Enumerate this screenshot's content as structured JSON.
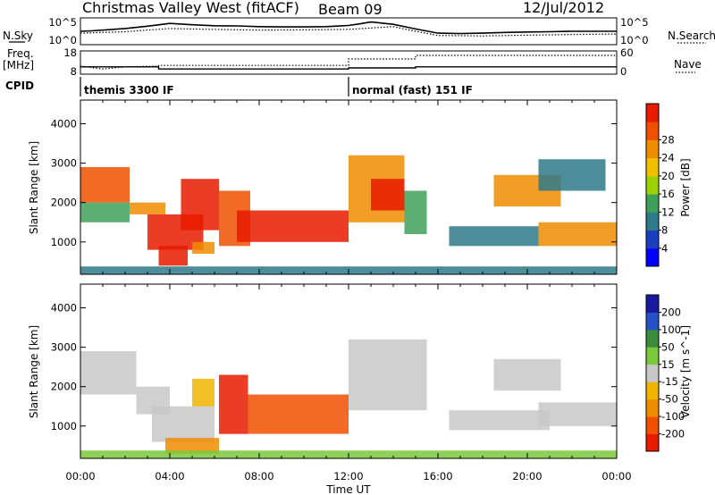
{
  "header": {
    "station": "Christmas Valley West (fitACF)",
    "beam": "Beam 09",
    "date": "12/Jul/2012"
  },
  "left_labels": {
    "nsky": "N.Sky",
    "freq": "Freq.",
    "freq_unit": "[MHz]",
    "cpid": "CPID"
  },
  "right_labels": {
    "nsearch": "N.Search",
    "nave": "Nave"
  },
  "cpid_modes": [
    {
      "label": "themis 3300 IF",
      "start_hour": 0,
      "end_hour": 12
    },
    {
      "label": "normal (fast) 151 IF",
      "start_hour": 12,
      "end_hour": 24
    }
  ],
  "chart_data": [
    {
      "type": "line",
      "panel": "noise",
      "left_ticks": [
        "10^5",
        "10^0"
      ],
      "right_ticks": [
        "10^5",
        "10^0"
      ],
      "series": [
        {
          "name": "N.Sky",
          "style": "solid",
          "x": [
            0,
            0.5,
            1,
            2,
            3,
            4,
            5,
            6,
            7,
            8,
            9,
            10,
            11,
            12,
            12.5,
            13,
            14,
            15,
            16,
            17,
            18,
            19,
            20,
            21,
            22,
            23,
            24
          ],
          "y": [
            0.5,
            0.52,
            0.55,
            0.62,
            0.72,
            0.84,
            0.78,
            0.74,
            0.73,
            0.7,
            0.69,
            0.69,
            0.7,
            0.75,
            0.82,
            0.9,
            0.8,
            0.6,
            0.42,
            0.4,
            0.42,
            0.45,
            0.47,
            0.48,
            0.5,
            0.5,
            0.5
          ]
        },
        {
          "name": "N.Search",
          "style": "dotted",
          "x": [
            0,
            2,
            4,
            6,
            8,
            10,
            12,
            14,
            15,
            16,
            18,
            20,
            22,
            24
          ],
          "y": [
            0.42,
            0.48,
            0.62,
            0.58,
            0.55,
            0.56,
            0.58,
            0.7,
            0.5,
            0.32,
            0.3,
            0.33,
            0.36,
            0.38
          ]
        }
      ]
    },
    {
      "type": "line",
      "panel": "frequency",
      "left_ticks": [
        "18",
        "8"
      ],
      "right_ticks": [
        "60",
        "0"
      ],
      "series": [
        {
          "name": "Freq.",
          "style": "solid",
          "x": [
            0,
            3.5,
            3.5,
            12,
            12,
            15,
            15,
            24
          ],
          "y": [
            11,
            11,
            10,
            10,
            10.5,
            10.5,
            11,
            11
          ]
        },
        {
          "name": "Nave",
          "style": "dotted",
          "x": [
            0,
            1,
            2,
            3.5,
            3.5,
            12,
            12,
            15,
            15,
            24
          ],
          "y": [
            20,
            12,
            18,
            20,
            22,
            22,
            40,
            40,
            50,
            50
          ]
        }
      ]
    },
    {
      "type": "heatmap",
      "panel": "power",
      "ylabel": "Slant Range [km]",
      "yticks": [
        1000,
        2000,
        3000,
        4000
      ],
      "ylim": [
        180,
        4600
      ],
      "xlim": [
        0,
        24
      ],
      "colorbar_label": "Power [dB]",
      "colorbar_ticks": [
        "4",
        "8",
        "12",
        "16",
        "20",
        "24",
        "28"
      ],
      "colorbar_colors": [
        "#0000ff",
        "#1a3fbf",
        "#2f7a8a",
        "#3fa05a",
        "#9bd20a",
        "#f0c000",
        "#f08c00",
        "#ef5000",
        "#e81a00"
      ],
      "regions": [
        {
          "x0": 0.0,
          "x1": 2.2,
          "y0": 2000,
          "y1": 2900,
          "level": 0.9
        },
        {
          "x0": 0.0,
          "x1": 2.2,
          "y0": 1500,
          "y1": 2000,
          "level": 0.35
        },
        {
          "x0": 2.2,
          "x1": 3.8,
          "y0": 1700,
          "y1": 2000,
          "level": 0.8
        },
        {
          "x0": 3.0,
          "x1": 5.5,
          "y0": 800,
          "y1": 1700,
          "level": 1.0
        },
        {
          "x0": 4.5,
          "x1": 6.2,
          "y0": 1300,
          "y1": 2600,
          "level": 0.95
        },
        {
          "x0": 3.5,
          "x1": 4.8,
          "y0": 400,
          "y1": 900,
          "level": 0.95
        },
        {
          "x0": 5.0,
          "x1": 6.0,
          "y0": 700,
          "y1": 1000,
          "level": 0.8
        },
        {
          "x0": 6.2,
          "x1": 7.6,
          "y0": 900,
          "y1": 2300,
          "level": 0.85
        },
        {
          "x0": 7.0,
          "x1": 12.0,
          "y0": 1000,
          "y1": 1800,
          "level": 1.0
        },
        {
          "x0": 12.0,
          "x1": 14.5,
          "y0": 1500,
          "y1": 3200,
          "level": 0.75
        },
        {
          "x0": 13.0,
          "x1": 14.5,
          "y0": 1800,
          "y1": 2600,
          "level": 0.95
        },
        {
          "x0": 14.5,
          "x1": 15.5,
          "y0": 1200,
          "y1": 2300,
          "level": 0.4
        },
        {
          "x0": 16.5,
          "x1": 20.5,
          "y0": 900,
          "y1": 1400,
          "level": 0.2
        },
        {
          "x0": 20.5,
          "x1": 24.0,
          "y0": 900,
          "y1": 1500,
          "level": 0.75
        },
        {
          "x0": 18.5,
          "x1": 21.5,
          "y0": 1900,
          "y1": 2700,
          "level": 0.7
        },
        {
          "x0": 20.5,
          "x1": 23.5,
          "y0": 2300,
          "y1": 3100,
          "level": 0.25
        },
        {
          "x0": 0.0,
          "x1": 24.0,
          "y0": 180,
          "y1": 380,
          "level": 0.3
        }
      ]
    },
    {
      "type": "heatmap",
      "panel": "velocity",
      "ylabel": "Slant Range [km]",
      "yticks": [
        1000,
        2000,
        3000,
        4000
      ],
      "ylim": [
        180,
        4600
      ],
      "xlim": [
        0,
        24
      ],
      "xlabel": "Time UT",
      "xticks": [
        "00:00",
        "04:00",
        "08:00",
        "12:00",
        "16:00",
        "20:00",
        "00:00"
      ],
      "colorbar_label": "Velocity [m s^-1]",
      "colorbar_ticks": [
        "200",
        "100",
        "50",
        "15",
        "-15",
        "-50",
        "-100",
        "-200"
      ],
      "colorbar_colors": [
        "#1a1aa0",
        "#2850c8",
        "#3c8c3c",
        "#7ac83c",
        "#c8c8c8",
        "#f0b400",
        "#f08c00",
        "#f05000",
        "#e81a00"
      ],
      "regions": [
        {
          "x0": 0.0,
          "x1": 2.5,
          "y0": 1800,
          "y1": 2900,
          "level": 0.45
        },
        {
          "x0": 2.5,
          "x1": 4.0,
          "y0": 1300,
          "y1": 2000,
          "level": 0.45
        },
        {
          "x0": 3.2,
          "x1": 6.0,
          "y0": 600,
          "y1": 1500,
          "level": 0.45
        },
        {
          "x0": 5.0,
          "x1": 6.0,
          "y0": 1500,
          "y1": 2200,
          "level": 0.6
        },
        {
          "x0": 3.8,
          "x1": 6.2,
          "y0": 300,
          "y1": 700,
          "level": 0.72
        },
        {
          "x0": 6.2,
          "x1": 7.5,
          "y0": 800,
          "y1": 2300,
          "level": 0.95
        },
        {
          "x0": 7.5,
          "x1": 12.0,
          "y0": 800,
          "y1": 1800,
          "level": 0.85
        },
        {
          "x0": 12.0,
          "x1": 15.5,
          "y0": 1400,
          "y1": 3200,
          "level": 0.45
        },
        {
          "x0": 16.5,
          "x1": 21.0,
          "y0": 900,
          "y1": 1400,
          "level": 0.45
        },
        {
          "x0": 18.5,
          "x1": 21.5,
          "y0": 1900,
          "y1": 2700,
          "level": 0.45
        },
        {
          "x0": 20.5,
          "x1": 24.0,
          "y0": 1000,
          "y1": 1600,
          "level": 0.45
        },
        {
          "x0": 0.0,
          "x1": 24.0,
          "y0": 180,
          "y1": 380,
          "level": 0.33
        }
      ]
    }
  ]
}
